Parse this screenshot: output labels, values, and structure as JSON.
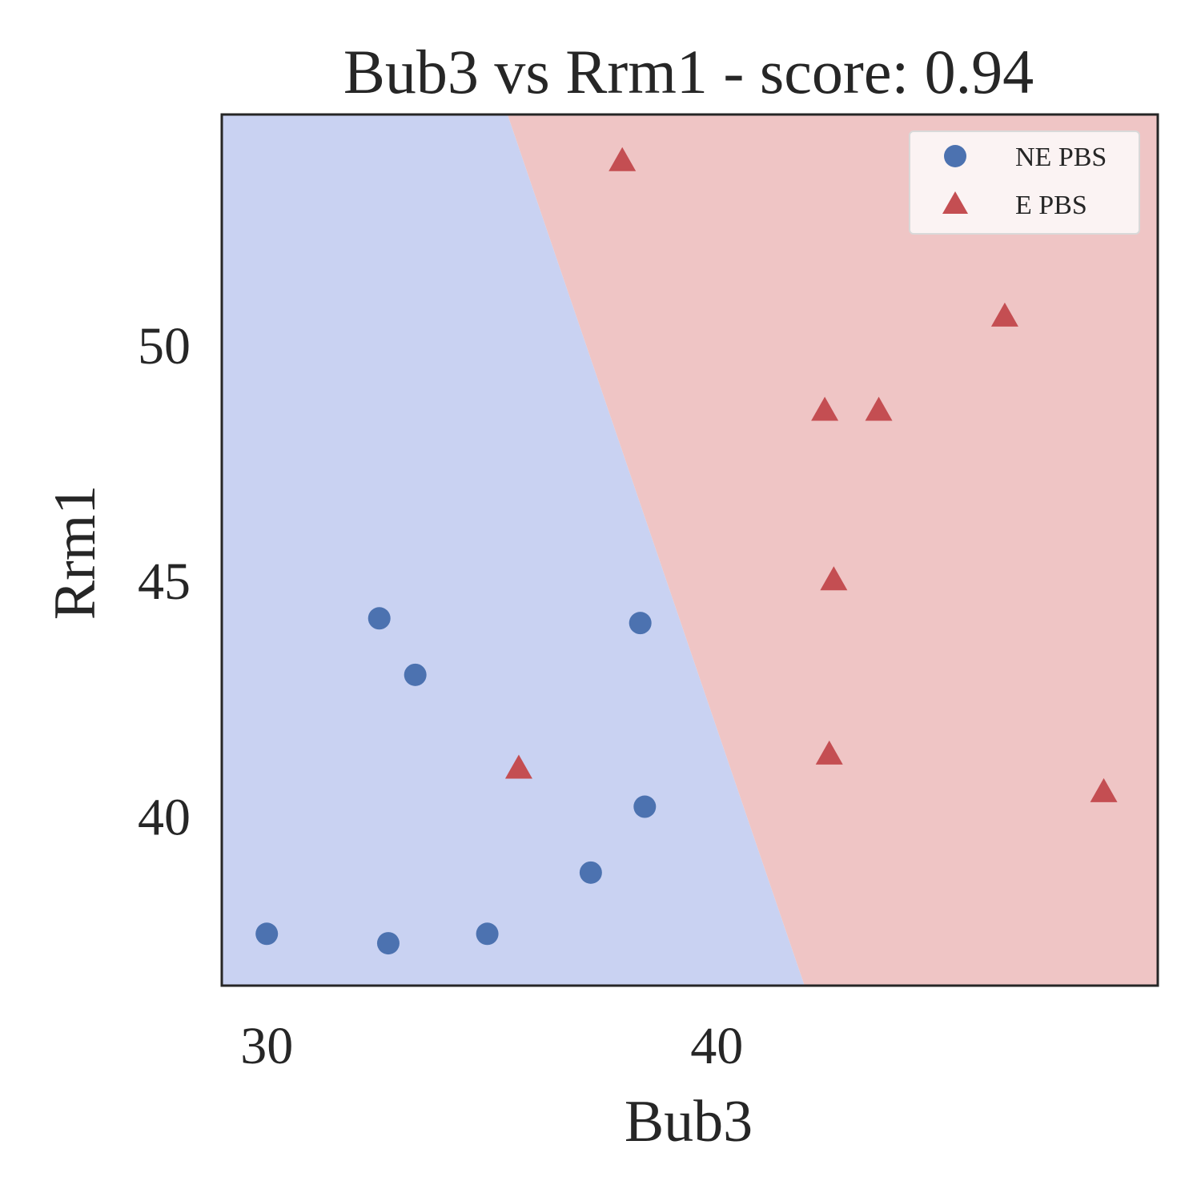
{
  "chart_data": {
    "type": "scatter",
    "title": "Bub3 vs Rrm1 - score: 0.94",
    "xlabel": "Bub3",
    "ylabel": "Rrm1",
    "xlim": [
      29.0,
      49.8
    ],
    "ylim": [
      36.4,
      54.9
    ],
    "xticks": [
      30,
      40
    ],
    "yticks": [
      40,
      45,
      50
    ],
    "grid": false,
    "legend": {
      "position": "top-right",
      "entries": [
        "NE PBS",
        "E PBS"
      ]
    },
    "decision_boundary": {
      "points": [
        [
          35.35,
          54.9
        ],
        [
          41.95,
          36.4
        ]
      ],
      "left_region_class": "NE PBS",
      "right_region_class": "E PBS"
    },
    "series": [
      {
        "name": "NE PBS",
        "marker": "circle",
        "color": "#4c72b0",
        "points": [
          [
            30.0,
            37.5
          ],
          [
            32.5,
            44.2
          ],
          [
            32.7,
            37.3
          ],
          [
            33.3,
            43.0
          ],
          [
            34.9,
            37.5
          ],
          [
            37.2,
            38.8
          ],
          [
            38.3,
            44.1
          ],
          [
            38.4,
            40.2
          ]
        ]
      },
      {
        "name": "E PBS",
        "marker": "triangle",
        "color": "#c44e52",
        "points": [
          [
            35.6,
            41.0
          ],
          [
            37.9,
            53.9
          ],
          [
            42.4,
            48.6
          ],
          [
            42.5,
            41.3
          ],
          [
            42.6,
            45.0
          ],
          [
            43.6,
            48.6
          ],
          [
            46.4,
            50.6
          ],
          [
            48.6,
            40.5
          ]
        ]
      }
    ]
  },
  "colors": {
    "ne_region": "#c9d2f2",
    "e_region": "#efc5c5",
    "ne_marker": "#4c72b0",
    "e_marker": "#c44e52",
    "frame": "#262626"
  }
}
